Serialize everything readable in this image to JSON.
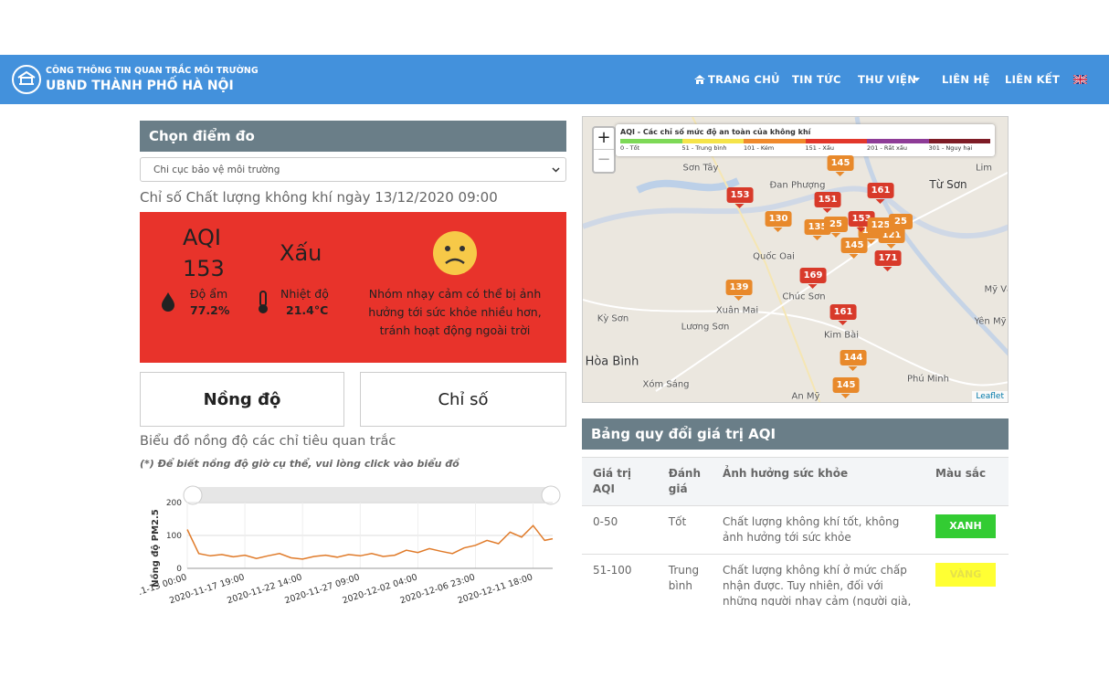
{
  "header": {
    "subtitle": "CÔNG THÔNG TIN QUAN TRẮC MÔI TRƯỜNG",
    "title": "UBND THÀNH PHỐ HÀ NỘI",
    "nav": [
      "TRANG CHỦ",
      "TIN TỨC",
      "THƯ VIỆN",
      "LIÊN HỆ",
      "LIÊN KẾT"
    ]
  },
  "station": {
    "heading": "Chọn điểm đo",
    "selected": "Chi cục bảo vệ môi trường",
    "caption": "Chỉ số Chất lượng không khí ngày 13/12/2020 09:00"
  },
  "aqi": {
    "label": "AQI",
    "value": 153,
    "rating": "Xấu",
    "humidity_label": "Độ ẩm",
    "humidity": "77.2%",
    "temperature_label": "Nhiệt độ",
    "temperature": "21.4°C",
    "message": "Nhóm nhạy cảm có thể bị ảnh hưởng tới sức khỏe nhiều hơn, tránh hoạt động ngoài trời"
  },
  "tabs": [
    "Nồng độ",
    "Chỉ số"
  ],
  "chart_heading": "Biểu đồ nồng độ các chỉ tiêu quan trắc",
  "chart_note": "(*) Để biết nồng độ giờ cụ thể, vui lòng click vào biểu đồ",
  "chart_data": {
    "type": "line",
    "ylabel": "Nồng độ PM2.5",
    "color": "#e07b2a",
    "x": [
      "2020-11-13 00:00",
      "2020-11-13 23:00",
      "2020-11-14 22:00",
      "2020-11-15 21:00",
      "2020-11-16 20:00",
      "2020-11-17 19:00",
      "2020-11-18 18:00",
      "2020-11-19 17:00",
      "2020-11-20 16:00",
      "2020-11-21 15:00",
      "2020-11-22 14:00",
      "2020-11-23 13:00",
      "2020-11-24 12:00",
      "2020-11-25 11:00",
      "2020-11-26 10:00",
      "2020-11-27 09:00",
      "2020-11-28 08:00",
      "2020-11-29 07:00",
      "2020-11-30 06:00",
      "2020-12-01 05:00",
      "2020-12-02 04:00",
      "2020-12-03 03:00",
      "2020-12-04 02:00",
      "2020-12-05 01:00",
      "2020-12-06 00:00",
      "2020-12-06 23:00",
      "2020-12-07 22:00",
      "2020-12-08 21:00",
      "2020-12-09 20:00",
      "2020-12-10 19:00",
      "2020-12-11 18:00",
      "2020-12-12 17:00",
      "2020-12-13 09:00"
    ],
    "values": [
      118,
      45,
      38,
      42,
      35,
      40,
      30,
      38,
      45,
      32,
      28,
      36,
      40,
      34,
      42,
      38,
      45,
      36,
      40,
      55,
      48,
      60,
      52,
      45,
      62,
      70,
      85,
      75,
      110,
      95,
      130,
      85,
      90
    ],
    "xlim": [
      "2020-11-13 00:00",
      "2020-12-13 09:00"
    ],
    "xticks": [
      "2020-11-13 00:00",
      "2020-11-17 19:00",
      "2020-11-22 14:00",
      "2020-11-27 09:00",
      "2020-12-02 04:00",
      "2020-12-06 23:00",
      "2020-12-11 18:00"
    ],
    "ylim": [
      0,
      200
    ],
    "yticks": [
      0,
      100,
      200
    ],
    "grid": true
  },
  "map": {
    "legend_title": "AQI - Các chỉ số mức độ an toàn của không khí",
    "legend": [
      {
        "label": "0 - Tốt",
        "color": "#7ed957"
      },
      {
        "label": "51 - Trung bình",
        "color": "#f5e44a"
      },
      {
        "label": "101 - Kém",
        "color": "#f08a2c"
      },
      {
        "label": "151 - Xấu",
        "color": "#e2372b"
      },
      {
        "label": "201 - Rất xấu",
        "color": "#8e3c97"
      },
      {
        "label": "301 - Nguy hại",
        "color": "#7e1c26"
      }
    ],
    "markers": [
      145,
      153,
      130,
      135,
      25,
      145,
      150,
      121,
      171,
      169,
      139,
      161,
      144,
      145,
      161,
      151,
      153,
      125,
      25
    ],
    "places": [
      "Sơn Tây",
      "Đan Phượng",
      "Từ Sơn",
      "Lim",
      "Quốc Oai",
      "Chúc Sơn",
      "Xuân Mai",
      "Kỳ Sơn",
      "Lương Sơn",
      "Kim Bài",
      "Hòa Bình",
      "Xóm Sáng",
      "Phú Minh",
      "An Mỹ",
      "Mỹ Văn",
      "Yên Mỹ"
    ],
    "zoom": [
      "+",
      "−"
    ],
    "attribution": "Leaflet"
  },
  "aqi_table": {
    "title": "Bảng quy đổi giá trị AQI",
    "header": [
      "Giá trị AQI",
      "Đánh giá",
      "Ảnh hưởng sức khỏe",
      "Màu sắc"
    ],
    "rows": [
      [
        "0-50",
        "Tốt",
        "Chất lượng không khí tốt, không ảnh hưởng tới sức khỏe",
        "XANH"
      ],
      [
        "51-100",
        "Trung bình",
        "Chất lượng không khí ở mức chấp nhận được. Tuy nhiên, đối với những người nhạy cảm (người già, trẻ em,",
        "VÀNG"
      ]
    ]
  }
}
